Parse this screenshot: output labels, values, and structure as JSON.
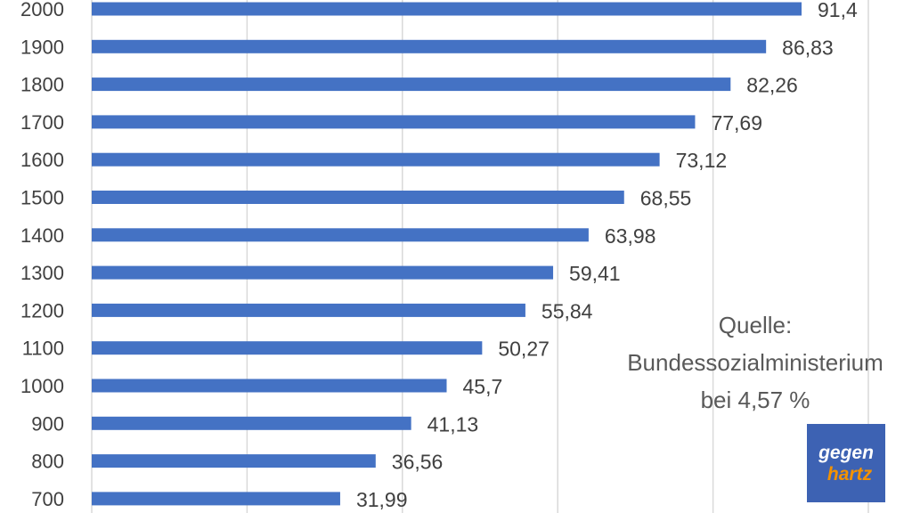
{
  "chart_data": {
    "type": "bar",
    "orientation": "horizontal",
    "categories": [
      "2000",
      "1900",
      "1800",
      "1700",
      "1600",
      "1500",
      "1400",
      "1300",
      "1200",
      "1100",
      "1000",
      "900",
      "800",
      "700"
    ],
    "values": [
      91.4,
      86.83,
      82.26,
      77.69,
      73.12,
      68.55,
      63.98,
      59.41,
      55.84,
      50.27,
      45.7,
      41.13,
      36.56,
      31.99
    ],
    "value_labels": [
      "91,4",
      "86,83",
      "82,26",
      "77,69",
      "73,12",
      "68,55",
      "63,98",
      "59,41",
      "55,84",
      "50,27",
      "45,7",
      "41,13",
      "36,56",
      "31,99"
    ],
    "xlim": [
      0,
      100
    ],
    "grid": true,
    "bar_color": "#4472C4"
  },
  "annotation": {
    "lines": [
      "Quelle:",
      "Bundessozialministerium",
      "bei 4,57 %"
    ]
  },
  "logo": {
    "top_text": "gegen",
    "bottom_text": "hartz",
    "background_color": "#3D62B3",
    "accent_color": "#F39200"
  }
}
